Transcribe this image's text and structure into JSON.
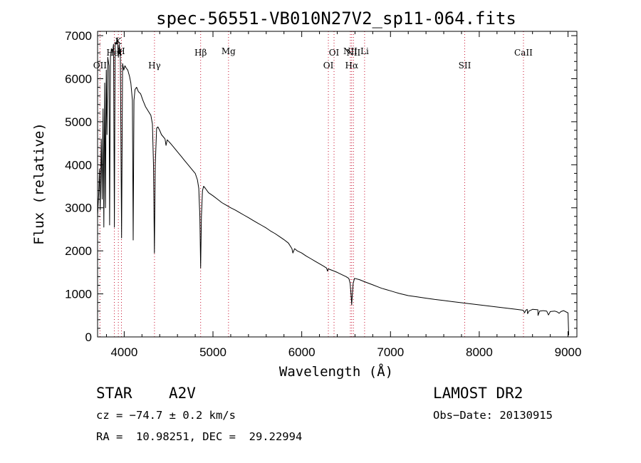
{
  "chart_data": {
    "type": "line",
    "title": "spec-56551-VB010N27V2_sp11-064.fits",
    "xlabel": "Wavelength (Å)",
    "ylabel": "Flux (relative)",
    "xlim": [
      3700,
      9100
    ],
    "ylim": [
      0,
      7100
    ],
    "xticks": [
      4000,
      5000,
      6000,
      7000,
      8000,
      9000
    ],
    "yticks": [
      0,
      1000,
      2000,
      3000,
      4000,
      5000,
      6000,
      7000
    ],
    "grid": false,
    "line_color": "#000000",
    "marker_color": "#c8102e",
    "lines": [
      {
        "label": "OII",
        "x": 3727,
        "row": 3
      },
      {
        "label": "K",
        "x": 3934,
        "row": 0
      },
      {
        "label": "H",
        "x": 3969,
        "row": 1
      },
      {
        "label": "HeI",
        "x": 3889,
        "row": 2
      },
      {
        "label": "Hγ",
        "x": 4341,
        "row": 3
      },
      {
        "label": "Hβ",
        "x": 4861,
        "row": 2
      },
      {
        "label": "Mg",
        "x": 5175,
        "row": 1
      },
      {
        "label": "OI",
        "x": 6300,
        "row": 3
      },
      {
        "label": "OI",
        "x": 6364,
        "row": 2
      },
      {
        "label": "NII",
        "x": 6548,
        "row": 1
      },
      {
        "label": "Hα",
        "x": 6563,
        "row": 3
      },
      {
        "label": "NII",
        "x": 6583,
        "row": 2
      },
      {
        "label": "Li",
        "x": 6708,
        "row": 1
      },
      {
        "label": "SII",
        "x": 7836,
        "row": 3
      },
      {
        "label": "CaII",
        "x": 8498,
        "row": 2
      }
    ],
    "series": [
      {
        "points": [
          [
            3700,
            2800
          ],
          [
            3712,
            3300
          ],
          [
            3722,
            3900
          ],
          [
            3730,
            2950
          ],
          [
            3742,
            4600
          ],
          [
            3752,
            3200
          ],
          [
            3762,
            5300
          ],
          [
            3771,
            2550
          ],
          [
            3780,
            5900
          ],
          [
            3789,
            3000
          ],
          [
            3798,
            6200
          ],
          [
            3806,
            4700
          ],
          [
            3815,
            6500
          ],
          [
            3828,
            6300
          ],
          [
            3836,
            2600
          ],
          [
            3845,
            6500
          ],
          [
            3856,
            6700
          ],
          [
            3868,
            6600
          ],
          [
            3880,
            6800
          ],
          [
            3889,
            2550
          ],
          [
            3898,
            6850
          ],
          [
            3910,
            6800
          ],
          [
            3922,
            6950
          ],
          [
            3934,
            6500
          ],
          [
            3944,
            6800
          ],
          [
            3957,
            6500
          ],
          [
            3970,
            2300
          ],
          [
            3982,
            6350
          ],
          [
            3995,
            6200
          ],
          [
            4008,
            6300
          ],
          [
            4022,
            6250
          ],
          [
            4040,
            6200
          ],
          [
            4060,
            6050
          ],
          [
            4075,
            5900
          ],
          [
            4092,
            5500
          ],
          [
            4101,
            2250
          ],
          [
            4110,
            5500
          ],
          [
            4122,
            5750
          ],
          [
            4140,
            5800
          ],
          [
            4160,
            5700
          ],
          [
            4185,
            5650
          ],
          [
            4210,
            5500
          ],
          [
            4240,
            5350
          ],
          [
            4270,
            5250
          ],
          [
            4300,
            5150
          ],
          [
            4318,
            4950
          ],
          [
            4330,
            4000
          ],
          [
            4340,
            1950
          ],
          [
            4350,
            4000
          ],
          [
            4365,
            4850
          ],
          [
            4380,
            4880
          ],
          [
            4400,
            4800
          ],
          [
            4420,
            4700
          ],
          [
            4440,
            4650
          ],
          [
            4460,
            4600
          ],
          [
            4471,
            4450
          ],
          [
            4485,
            4580
          ],
          [
            4520,
            4500
          ],
          [
            4560,
            4400
          ],
          [
            4600,
            4300
          ],
          [
            4640,
            4200
          ],
          [
            4680,
            4100
          ],
          [
            4720,
            4000
          ],
          [
            4760,
            3900
          ],
          [
            4800,
            3800
          ],
          [
            4825,
            3650
          ],
          [
            4840,
            3450
          ],
          [
            4852,
            2800
          ],
          [
            4861,
            1600
          ],
          [
            4870,
            2800
          ],
          [
            4882,
            3400
          ],
          [
            4895,
            3500
          ],
          [
            4915,
            3450
          ],
          [
            4950,
            3350
          ],
          [
            5000,
            3280
          ],
          [
            5050,
            3200
          ],
          [
            5100,
            3120
          ],
          [
            5150,
            3060
          ],
          [
            5200,
            3000
          ],
          [
            5250,
            2950
          ],
          [
            5300,
            2890
          ],
          [
            5350,
            2830
          ],
          [
            5400,
            2770
          ],
          [
            5450,
            2710
          ],
          [
            5500,
            2650
          ],
          [
            5550,
            2590
          ],
          [
            5600,
            2530
          ],
          [
            5650,
            2460
          ],
          [
            5700,
            2400
          ],
          [
            5750,
            2330
          ],
          [
            5800,
            2260
          ],
          [
            5850,
            2180
          ],
          [
            5890,
            2050
          ],
          [
            5900,
            1950
          ],
          [
            5920,
            2050
          ],
          [
            5950,
            2000
          ],
          [
            6000,
            1950
          ],
          [
            6050,
            1880
          ],
          [
            6100,
            1820
          ],
          [
            6150,
            1760
          ],
          [
            6200,
            1700
          ],
          [
            6250,
            1640
          ],
          [
            6280,
            1600
          ],
          [
            6290,
            1530
          ],
          [
            6300,
            1580
          ],
          [
            6350,
            1540
          ],
          [
            6400,
            1500
          ],
          [
            6450,
            1450
          ],
          [
            6500,
            1400
          ],
          [
            6530,
            1360
          ],
          [
            6545,
            1250
          ],
          [
            6555,
            1000
          ],
          [
            6563,
            750
          ],
          [
            6570,
            1000
          ],
          [
            6580,
            1250
          ],
          [
            6595,
            1360
          ],
          [
            6650,
            1330
          ],
          [
            6700,
            1290
          ],
          [
            6750,
            1250
          ],
          [
            6800,
            1210
          ],
          [
            6850,
            1170
          ],
          [
            6900,
            1130
          ],
          [
            6950,
            1100
          ],
          [
            7000,
            1070
          ],
          [
            7050,
            1040
          ],
          [
            7100,
            1010
          ],
          [
            7200,
            960
          ],
          [
            7300,
            930
          ],
          [
            7400,
            900
          ],
          [
            7500,
            870
          ],
          [
            7600,
            845
          ],
          [
            7700,
            820
          ],
          [
            7800,
            795
          ],
          [
            7900,
            770
          ],
          [
            8000,
            745
          ],
          [
            8100,
            720
          ],
          [
            8200,
            695
          ],
          [
            8300,
            670
          ],
          [
            8400,
            645
          ],
          [
            8495,
            620
          ],
          [
            8510,
            560
          ],
          [
            8525,
            620
          ],
          [
            8540,
            640
          ],
          [
            8545,
            540
          ],
          [
            8560,
            600
          ],
          [
            8600,
            640
          ],
          [
            8660,
            630
          ],
          [
            8662,
            500
          ],
          [
            8680,
            600
          ],
          [
            8720,
            610
          ],
          [
            8760,
            600
          ],
          [
            8780,
            510
          ],
          [
            8800,
            590
          ],
          [
            8850,
            600
          ],
          [
            8880,
            580
          ],
          [
            8900,
            550
          ],
          [
            8920,
            590
          ],
          [
            8950,
            610
          ],
          [
            8980,
            580
          ],
          [
            9000,
            560
          ],
          [
            9008,
            40
          ]
        ]
      }
    ]
  },
  "info": {
    "object_type": "STAR",
    "spec_class": "A2V",
    "survey": "LAMOST DR2",
    "cz": "cz = −74.7 ± 0.2 km/s",
    "obs_date": "Obs−Date: 20130915",
    "coords": "RA =  10.98251, DEC =  29.22994"
  }
}
